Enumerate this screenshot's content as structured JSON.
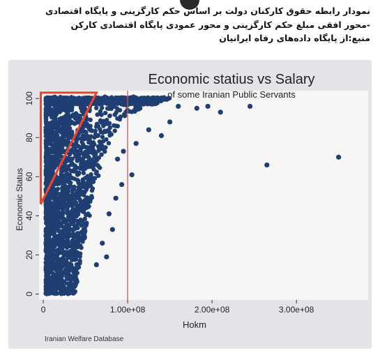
{
  "caption": {
    "line1": "نمودار رابطه حقوق کارکنان دولت بر اساس حکم کارگزینی و پایگاه اقتصادی",
    "line2": "-محور افقی مبلغ حکم کارگزینی و محور عمودی پایگاه اقتصادی کارکن",
    "line3": "منبع:از پایگاه داده‌های رفاه ایرانیان"
  },
  "colors": {
    "points": "#1f3f73",
    "reference_line": "#e05050",
    "triangle": "#f0432e",
    "plot_bg": "#f6f6f4"
  },
  "chart_data": {
    "type": "scatter",
    "title": "Economic statius vs Salary",
    "subtitle": "of some Iranian Public Servants",
    "xlabel": "Hokm",
    "ylabel": "Economic Status",
    "xlim": [
      -5000000,
      385000000
    ],
    "ylim": [
      -3,
      104
    ],
    "x_ticks": [
      {
        "value": 0,
        "label": "0"
      },
      {
        "value": 100000000,
        "label": "1.00e+08"
      },
      {
        "value": 200000000,
        "label": "2.00e+08"
      },
      {
        "value": 300000000,
        "label": "3.00e+08"
      }
    ],
    "y_ticks": [
      {
        "value": 0,
        "label": "0"
      },
      {
        "value": 20,
        "label": "20"
      },
      {
        "value": 40,
        "label": "40"
      },
      {
        "value": 60,
        "label": "60"
      },
      {
        "value": 80,
        "label": "80"
      },
      {
        "value": 100,
        "label": "100"
      }
    ],
    "grid": false,
    "legend": "none",
    "reference_line_x": 100000000,
    "dense_band": {
      "x_min": 3000000,
      "x_max_by_y": [
        [
          0,
          38000000
        ],
        [
          20,
          45000000
        ],
        [
          40,
          55000000
        ],
        [
          60,
          65000000
        ],
        [
          80,
          80000000
        ],
        [
          90,
          95000000
        ],
        [
          95,
          120000000
        ],
        [
          100,
          150000000
        ]
      ]
    },
    "outliers": [
      {
        "x": 245000000,
        "y": 96
      },
      {
        "x": 265000000,
        "y": 66
      },
      {
        "x": 350000000,
        "y": 70
      },
      {
        "x": 182000000,
        "y": 95
      },
      {
        "x": 195000000,
        "y": 96
      },
      {
        "x": 210000000,
        "y": 93
      },
      {
        "x": 160000000,
        "y": 96
      },
      {
        "x": 150000000,
        "y": 88
      },
      {
        "x": 140000000,
        "y": 81
      },
      {
        "x": 125000000,
        "y": 84
      },
      {
        "x": 110000000,
        "y": 77
      },
      {
        "x": 95000000,
        "y": 73
      },
      {
        "x": 105000000,
        "y": 61
      },
      {
        "x": 88000000,
        "y": 69
      },
      {
        "x": 93000000,
        "y": 56
      },
      {
        "x": 86000000,
        "y": 49
      },
      {
        "x": 78000000,
        "y": 41
      },
      {
        "x": 82000000,
        "y": 33
      },
      {
        "x": 70000000,
        "y": 26
      },
      {
        "x": 75000000,
        "y": 19
      },
      {
        "x": 63000000,
        "y": 15
      }
    ],
    "annotation_triangle": [
      {
        "x": -3000000,
        "y": 103
      },
      {
        "x": 63000000,
        "y": 103
      },
      {
        "x": -3000000,
        "y": 46
      }
    ],
    "footnote": "Iranian Welfare Database"
  }
}
